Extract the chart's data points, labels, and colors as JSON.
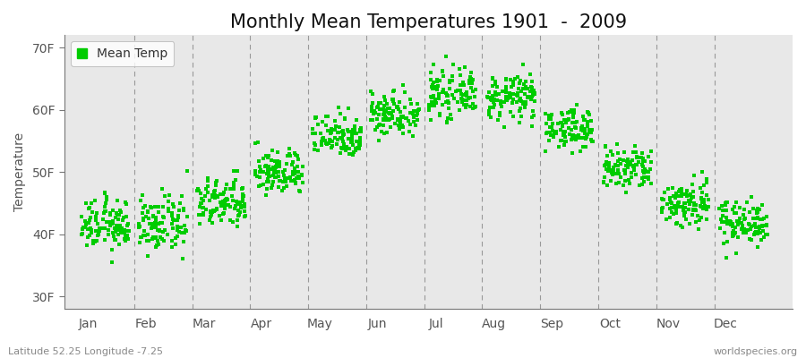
{
  "title": "Monthly Mean Temperatures 1901  -  2009",
  "ylabel": "Temperature",
  "ytick_labels": [
    "30F",
    "40F",
    "50F",
    "60F",
    "70F"
  ],
  "ytick_values": [
    30,
    40,
    50,
    60,
    70
  ],
  "ylim": [
    28,
    72
  ],
  "xtick_labels": [
    "Jan",
    "Feb",
    "Mar",
    "Apr",
    "May",
    "Jun",
    "Jul",
    "Aug",
    "Sep",
    "Oct",
    "Nov",
    "Dec"
  ],
  "month_centers": [
    1,
    2,
    3,
    4,
    5,
    6,
    7,
    8,
    9,
    10,
    11,
    12
  ],
  "xlim": [
    0.3,
    12.85
  ],
  "dot_color": "#00CC00",
  "dot_size": 5,
  "fig_background_color": "#FFFFFF",
  "plot_bg_color": "#E8E8E8",
  "legend_label": "Mean Temp",
  "bottom_left_text": "Latitude 52.25 Longitude -7.25",
  "bottom_right_text": "worldspecies.org",
  "title_fontsize": 15,
  "label_fontsize": 10,
  "tick_fontsize": 10,
  "monthly_mean_F": [
    41.5,
    41.5,
    45.0,
    50.0,
    56.0,
    59.5,
    62.5,
    62.0,
    57.0,
    50.5,
    45.0,
    42.0
  ],
  "monthly_std_F": [
    2.0,
    2.2,
    2.0,
    1.8,
    1.8,
    1.8,
    1.8,
    1.8,
    1.6,
    1.8,
    2.0,
    1.8
  ]
}
